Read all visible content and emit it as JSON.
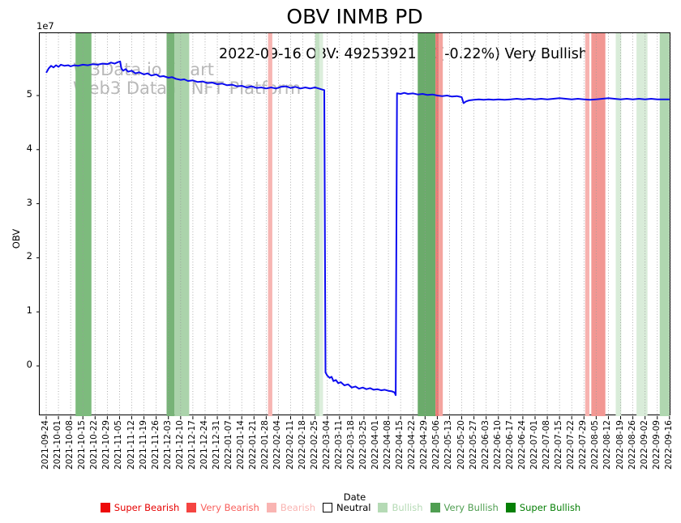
{
  "title": "OBV INMB PD",
  "subtitle": "2022-09-16 OBV: 49253921.00(-0.22%) Very Bullish",
  "watermark": {
    "line1": "W3Data.io Chart",
    "line2": "Web3 Data & NFT Platform"
  },
  "chart_data": {
    "type": "line",
    "title": "OBV INMB PD",
    "annotation": "2022-09-16 OBV: 49253921.00(-0.22%) Very Bullish",
    "xlabel": "Date",
    "ylabel": "OBV",
    "y_offset_label": "1e7",
    "y_multiplier": 10000000,
    "ylim_e7": [
      -0.93,
      6.15
    ],
    "yticks_e7": [
      0,
      1,
      2,
      3,
      4,
      5
    ],
    "grid": "vertical-dotted",
    "line_color": "#0b0bf0",
    "latest": {
      "date": "2022-09-16",
      "obv": 49253921.0,
      "change_pct": -0.22,
      "signal": "Very Bullish"
    },
    "x_categories": [
      "2021-09-24",
      "2021-10-01",
      "2021-10-08",
      "2021-10-15",
      "2021-10-22",
      "2021-10-29",
      "2021-11-05",
      "2021-11-12",
      "2021-11-19",
      "2021-11-26",
      "2021-12-03",
      "2021-12-10",
      "2021-12-17",
      "2021-12-24",
      "2021-12-31",
      "2022-01-07",
      "2022-01-14",
      "2022-01-21",
      "2022-01-28",
      "2022-02-04",
      "2022-02-11",
      "2022-02-18",
      "2022-02-25",
      "2022-03-04",
      "2022-03-11",
      "2022-03-18",
      "2022-03-25",
      "2022-04-01",
      "2022-04-08",
      "2022-04-15",
      "2022-04-22",
      "2022-04-29",
      "2022-05-06",
      "2022-05-13",
      "2022-05-20",
      "2022-05-27",
      "2022-06-03",
      "2022-06-10",
      "2022-06-17",
      "2022-06-24",
      "2022-07-01",
      "2022-07-08",
      "2022-07-15",
      "2022-07-22",
      "2022-07-29",
      "2022-08-05",
      "2022-08-12",
      "2022-08-19",
      "2022-08-26",
      "2022-09-02",
      "2022-09-09",
      "2022-09-16"
    ],
    "series": [
      {
        "name": "OBV",
        "color": "#0b0bf0",
        "points_e7": [
          [
            0,
            5.42
          ],
          [
            0.2,
            5.5
          ],
          [
            0.4,
            5.55
          ],
          [
            0.6,
            5.52
          ],
          [
            0.8,
            5.56
          ],
          [
            1,
            5.53
          ],
          [
            1.2,
            5.57
          ],
          [
            1.5,
            5.55
          ],
          [
            1.8,
            5.56
          ],
          [
            2,
            5.54
          ],
          [
            2.3,
            5.56
          ],
          [
            2.6,
            5.55
          ],
          [
            3,
            5.57
          ],
          [
            3.4,
            5.56
          ],
          [
            3.8,
            5.58
          ],
          [
            4.2,
            5.57
          ],
          [
            4.6,
            5.59
          ],
          [
            5,
            5.58
          ],
          [
            5.3,
            5.61
          ],
          [
            5.6,
            5.59
          ],
          [
            5.9,
            5.62
          ],
          [
            6.05,
            5.63
          ],
          [
            6.15,
            5.5
          ],
          [
            6.3,
            5.46
          ],
          [
            6.5,
            5.49
          ],
          [
            6.7,
            5.44
          ],
          [
            7,
            5.46
          ],
          [
            7.3,
            5.41
          ],
          [
            7.6,
            5.43
          ],
          [
            8,
            5.39
          ],
          [
            8.3,
            5.41
          ],
          [
            8.6,
            5.37
          ],
          [
            9,
            5.39
          ],
          [
            9.3,
            5.35
          ],
          [
            9.6,
            5.36
          ],
          [
            10,
            5.33
          ],
          [
            10.3,
            5.34
          ],
          [
            10.6,
            5.31
          ],
          [
            11,
            5.29
          ],
          [
            11.3,
            5.3
          ],
          [
            11.6,
            5.27
          ],
          [
            12,
            5.28
          ],
          [
            12.4,
            5.25
          ],
          [
            12.8,
            5.26
          ],
          [
            13.2,
            5.23
          ],
          [
            13.6,
            5.24
          ],
          [
            14,
            5.21
          ],
          [
            14.4,
            5.22
          ],
          [
            14.8,
            5.19
          ],
          [
            15.2,
            5.2
          ],
          [
            15.6,
            5.17
          ],
          [
            16,
            5.18
          ],
          [
            16.4,
            5.15
          ],
          [
            16.8,
            5.17
          ],
          [
            17.2,
            5.14
          ],
          [
            17.6,
            5.15
          ],
          [
            18,
            5.13
          ],
          [
            18.4,
            5.15
          ],
          [
            18.8,
            5.13
          ],
          [
            19.2,
            5.16
          ],
          [
            19.6,
            5.17
          ],
          [
            20,
            5.14
          ],
          [
            20.4,
            5.16
          ],
          [
            20.8,
            5.13
          ],
          [
            21.2,
            5.15
          ],
          [
            21.6,
            5.13
          ],
          [
            22,
            5.15
          ],
          [
            22.3,
            5.13
          ],
          [
            22.6,
            5.11
          ],
          [
            22.75,
            5.1
          ],
          [
            22.85,
            -0.12
          ],
          [
            23,
            -0.18
          ],
          [
            23.2,
            -0.22
          ],
          [
            23.35,
            -0.2
          ],
          [
            23.5,
            -0.28
          ],
          [
            23.7,
            -0.26
          ],
          [
            23.9,
            -0.32
          ],
          [
            24.1,
            -0.3
          ],
          [
            24.4,
            -0.36
          ],
          [
            24.7,
            -0.34
          ],
          [
            25,
            -0.4
          ],
          [
            25.3,
            -0.38
          ],
          [
            25.6,
            -0.42
          ],
          [
            25.9,
            -0.4
          ],
          [
            26.2,
            -0.43
          ],
          [
            26.5,
            -0.41
          ],
          [
            26.8,
            -0.44
          ],
          [
            27.1,
            -0.43
          ],
          [
            27.4,
            -0.45
          ],
          [
            27.7,
            -0.44
          ],
          [
            28,
            -0.46
          ],
          [
            28.3,
            -0.47
          ],
          [
            28.5,
            -0.49
          ],
          [
            28.6,
            -0.54
          ],
          [
            28.7,
            5.04
          ],
          [
            29,
            5.03
          ],
          [
            29.3,
            5.05
          ],
          [
            29.6,
            5.03
          ],
          [
            30,
            5.04
          ],
          [
            30.4,
            5.02
          ],
          [
            30.8,
            5.03
          ],
          [
            31.2,
            5.01
          ],
          [
            31.6,
            5.02
          ],
          [
            32,
            5.0
          ],
          [
            32.4,
            4.99
          ],
          [
            32.8,
            5.0
          ],
          [
            33.2,
            4.98
          ],
          [
            33.6,
            4.99
          ],
          [
            34,
            4.97
          ],
          [
            34.15,
            4.86
          ],
          [
            34.35,
            4.89
          ],
          [
            34.6,
            4.91
          ],
          [
            35,
            4.92
          ],
          [
            35.4,
            4.93
          ],
          [
            35.8,
            4.92
          ],
          [
            36.2,
            4.93
          ],
          [
            36.6,
            4.92
          ],
          [
            37,
            4.93
          ],
          [
            37.5,
            4.92
          ],
          [
            38,
            4.93
          ],
          [
            38.5,
            4.94
          ],
          [
            39,
            4.93
          ],
          [
            39.5,
            4.94
          ],
          [
            40,
            4.93
          ],
          [
            40.5,
            4.94
          ],
          [
            41,
            4.93
          ],
          [
            41.5,
            4.94
          ],
          [
            42,
            4.95
          ],
          [
            42.5,
            4.94
          ],
          [
            43,
            4.93
          ],
          [
            43.5,
            4.94
          ],
          [
            44,
            4.93
          ],
          [
            44.5,
            4.92
          ],
          [
            45,
            4.93
          ],
          [
            45.5,
            4.94
          ],
          [
            46,
            4.95
          ],
          [
            46.5,
            4.94
          ],
          [
            47,
            4.93
          ],
          [
            47.5,
            4.94
          ],
          [
            48,
            4.93
          ],
          [
            48.5,
            4.94
          ],
          [
            49,
            4.93
          ],
          [
            49.5,
            4.94
          ],
          [
            50,
            4.93
          ],
          [
            50.5,
            4.93
          ],
          [
            51,
            4.93
          ]
        ]
      }
    ],
    "bands": [
      {
        "start": 2.4,
        "end": 3.7,
        "color": "#7dbb7d",
        "label": "Very Bullish"
      },
      {
        "start": 9.85,
        "end": 10.5,
        "color": "#77b377",
        "label": "Very Bullish"
      },
      {
        "start": 10.5,
        "end": 11.7,
        "color": "#abd3ab",
        "label": "Bullish"
      },
      {
        "start": 18.15,
        "end": 18.5,
        "color": "#f7b5b2",
        "label": "Bearish"
      },
      {
        "start": 22.0,
        "end": 22.35,
        "color": "#c2e0c2",
        "label": "Bullish"
      },
      {
        "start": 22.35,
        "end": 22.65,
        "color": "#dceedc",
        "label": "Bullish"
      },
      {
        "start": 30.4,
        "end": 31.85,
        "color": "#6bab6b",
        "label": "Very Bullish"
      },
      {
        "start": 31.85,
        "end": 32.12,
        "color": "#ec7a76",
        "label": "Very Bearish"
      },
      {
        "start": 32.12,
        "end": 32.45,
        "color": "#f4a49f",
        "label": "Bearish"
      },
      {
        "start": 44.1,
        "end": 44.45,
        "color": "#f7b3b0",
        "label": "Bearish"
      },
      {
        "start": 44.6,
        "end": 45.75,
        "color": "#f29793",
        "label": "Very Bearish"
      },
      {
        "start": 46.6,
        "end": 47.05,
        "color": "#d9ecd9",
        "label": "Bullish"
      },
      {
        "start": 48.3,
        "end": 49.2,
        "color": "#d9ecd9",
        "label": "Bullish"
      },
      {
        "start": 50.2,
        "end": 51.0,
        "color": "#b0d7b0",
        "label": "Bullish"
      }
    ],
    "legend_position": "bottom",
    "legend": [
      {
        "label": "Super Bearish",
        "swatch": "#ed0909",
        "text_color": "#e60000",
        "outlined": false
      },
      {
        "label": "Very Bearish",
        "swatch": "#f54441",
        "text_color": "#f85f5c",
        "outlined": false
      },
      {
        "label": "Bearish",
        "swatch": "#f9b4b2",
        "text_color": "#f9b4b2",
        "outlined": false
      },
      {
        "label": "Neutral",
        "swatch": "#ffffff",
        "text_color": "#000000",
        "outlined": true
      },
      {
        "label": "Bullish",
        "swatch": "#b5dab5",
        "text_color": "#b5dab5",
        "outlined": false
      },
      {
        "label": "Very Bullish",
        "swatch": "#4f9e51",
        "text_color": "#4f9e51",
        "outlined": false
      },
      {
        "label": "Super Bullish",
        "swatch": "#067f06",
        "text_color": "#067f06",
        "outlined": false
      }
    ]
  }
}
